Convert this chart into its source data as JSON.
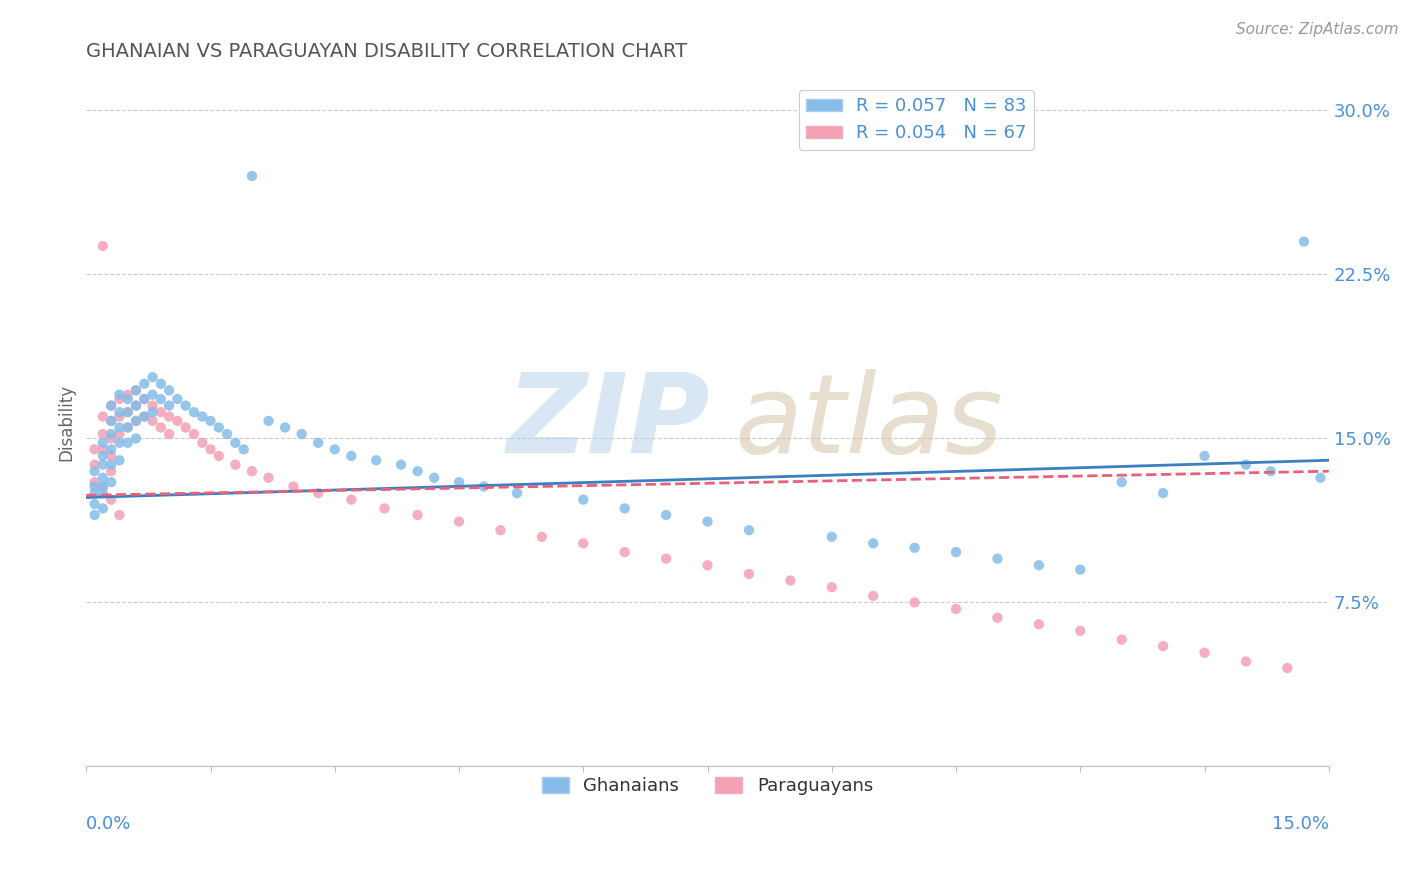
{
  "title": "GHANAIAN VS PARAGUAYAN DISABILITY CORRELATION CHART",
  "source": "Source: ZipAtlas.com",
  "ylabel": "Disability",
  "xlim": [
    0.0,
    0.15
  ],
  "ylim": [
    0.0,
    0.315
  ],
  "yticks": [
    0.0,
    0.075,
    0.15,
    0.225,
    0.3
  ],
  "ytick_labels": [
    "",
    "7.5%",
    "15.0%",
    "22.5%",
    "30.0%"
  ],
  "legend1_label": "R = 0.057   N = 83",
  "legend2_label": "R = 0.054   N = 67",
  "ghanaian_color": "#85bce8",
  "paraguayan_color": "#f4a0b5",
  "trend_blue": "#3a7fc1",
  "trend_pink": "#e8607a",
  "axis_label_color": "#4a90d9",
  "ghanaian_x": [
    0.001,
    0.001,
    0.001,
    0.001,
    0.001,
    0.002,
    0.002,
    0.002,
    0.002,
    0.002,
    0.002,
    0.002,
    0.003,
    0.003,
    0.003,
    0.003,
    0.003,
    0.003,
    0.004,
    0.004,
    0.004,
    0.004,
    0.004,
    0.005,
    0.005,
    0.005,
    0.005,
    0.006,
    0.006,
    0.006,
    0.006,
    0.007,
    0.007,
    0.007,
    0.008,
    0.008,
    0.008,
    0.009,
    0.009,
    0.01,
    0.01,
    0.011,
    0.012,
    0.013,
    0.014,
    0.015,
    0.016,
    0.017,
    0.018,
    0.019,
    0.02,
    0.022,
    0.024,
    0.026,
    0.028,
    0.03,
    0.032,
    0.035,
    0.038,
    0.04,
    0.042,
    0.045,
    0.048,
    0.052,
    0.06,
    0.065,
    0.07,
    0.075,
    0.08,
    0.09,
    0.095,
    0.1,
    0.105,
    0.11,
    0.115,
    0.12,
    0.125,
    0.13,
    0.135,
    0.14,
    0.143,
    0.147,
    0.149
  ],
  "ghanaian_y": [
    0.135,
    0.128,
    0.125,
    0.12,
    0.115,
    0.148,
    0.142,
    0.138,
    0.132,
    0.128,
    0.125,
    0.118,
    0.165,
    0.158,
    0.152,
    0.145,
    0.138,
    0.13,
    0.17,
    0.162,
    0.155,
    0.148,
    0.14,
    0.168,
    0.162,
    0.155,
    0.148,
    0.172,
    0.165,
    0.158,
    0.15,
    0.175,
    0.168,
    0.16,
    0.178,
    0.17,
    0.162,
    0.175,
    0.168,
    0.172,
    0.165,
    0.168,
    0.165,
    0.162,
    0.16,
    0.158,
    0.155,
    0.152,
    0.148,
    0.145,
    0.27,
    0.158,
    0.155,
    0.152,
    0.148,
    0.145,
    0.142,
    0.14,
    0.138,
    0.135,
    0.132,
    0.13,
    0.128,
    0.125,
    0.122,
    0.118,
    0.115,
    0.112,
    0.108,
    0.105,
    0.102,
    0.1,
    0.098,
    0.095,
    0.092,
    0.09,
    0.13,
    0.125,
    0.142,
    0.138,
    0.135,
    0.24,
    0.132
  ],
  "paraguayan_x": [
    0.001,
    0.001,
    0.001,
    0.002,
    0.002,
    0.002,
    0.002,
    0.003,
    0.003,
    0.003,
    0.003,
    0.003,
    0.004,
    0.004,
    0.004,
    0.005,
    0.005,
    0.005,
    0.006,
    0.006,
    0.006,
    0.007,
    0.007,
    0.008,
    0.008,
    0.009,
    0.009,
    0.01,
    0.01,
    0.011,
    0.012,
    0.013,
    0.014,
    0.015,
    0.016,
    0.018,
    0.02,
    0.022,
    0.025,
    0.028,
    0.032,
    0.036,
    0.04,
    0.045,
    0.05,
    0.055,
    0.06,
    0.065,
    0.07,
    0.075,
    0.08,
    0.085,
    0.09,
    0.095,
    0.1,
    0.105,
    0.11,
    0.115,
    0.12,
    0.125,
    0.13,
    0.135,
    0.14,
    0.145,
    0.002,
    0.003,
    0.004
  ],
  "paraguayan_y": [
    0.145,
    0.138,
    0.13,
    0.16,
    0.152,
    0.145,
    0.238,
    0.165,
    0.158,
    0.15,
    0.142,
    0.135,
    0.168,
    0.16,
    0.152,
    0.17,
    0.162,
    0.155,
    0.172,
    0.165,
    0.158,
    0.168,
    0.16,
    0.165,
    0.158,
    0.162,
    0.155,
    0.16,
    0.152,
    0.158,
    0.155,
    0.152,
    0.148,
    0.145,
    0.142,
    0.138,
    0.135,
    0.132,
    0.128,
    0.125,
    0.122,
    0.118,
    0.115,
    0.112,
    0.108,
    0.105,
    0.102,
    0.098,
    0.095,
    0.092,
    0.088,
    0.085,
    0.082,
    0.078,
    0.075,
    0.072,
    0.068,
    0.065,
    0.062,
    0.058,
    0.055,
    0.052,
    0.048,
    0.045,
    0.128,
    0.122,
    0.115
  ]
}
